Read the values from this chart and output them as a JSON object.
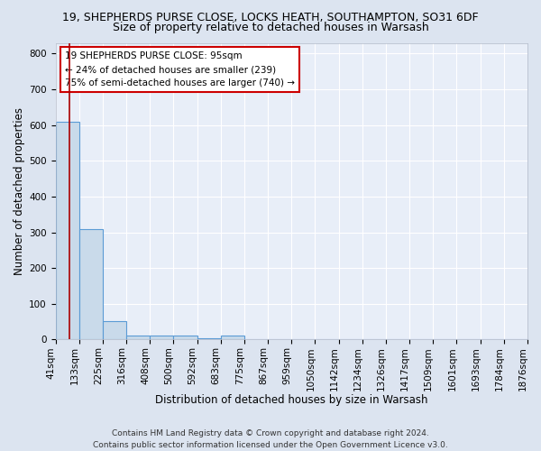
{
  "title1": "19, SHEPHERDS PURSE CLOSE, LOCKS HEATH, SOUTHAMPTON, SO31 6DF",
  "title2": "Size of property relative to detached houses in Warsash",
  "xlabel": "Distribution of detached houses by size in Warsash",
  "ylabel": "Number of detached properties",
  "tick_labels": [
    "41sqm",
    "133sqm",
    "225sqm",
    "316sqm",
    "408sqm",
    "500sqm",
    "592sqm",
    "683sqm",
    "775sqm",
    "867sqm",
    "959sqm",
    "1050sqm",
    "1142sqm",
    "1234sqm",
    "1326sqm",
    "1417sqm",
    "1509sqm",
    "1601sqm",
    "1693sqm",
    "1784sqm",
    "1876sqm"
  ],
  "bar_heights": [
    608,
    310,
    52,
    10,
    12,
    12,
    3,
    10,
    0,
    0,
    0,
    0,
    0,
    0,
    0,
    0,
    0,
    0,
    0,
    0
  ],
  "bar_color": "#c9daea",
  "bar_edge_color": "#5b9bd5",
  "property_line_bin": 0.58,
  "property_line_color": "#aa0000",
  "annotation_text": "19 SHEPHERDS PURSE CLOSE: 95sqm\n← 24% of detached houses are smaller (239)\n75% of semi-detached houses are larger (740) →",
  "annotation_box_color": "#ffffff",
  "annotation_box_edge": "#cc0000",
  "ylim": [
    0,
    830
  ],
  "yticks": [
    0,
    100,
    200,
    300,
    400,
    500,
    600,
    700,
    800
  ],
  "bg_color": "#e8eef8",
  "grid_color": "#ffffff",
  "footer": "Contains HM Land Registry data © Crown copyright and database right 2024.\nContains public sector information licensed under the Open Government Licence v3.0.",
  "title1_fontsize": 9,
  "title2_fontsize": 9,
  "xlabel_fontsize": 8.5,
  "ylabel_fontsize": 8.5,
  "tick_fontsize": 7.5,
  "annotation_fontsize": 7.5,
  "footer_fontsize": 6.5
}
